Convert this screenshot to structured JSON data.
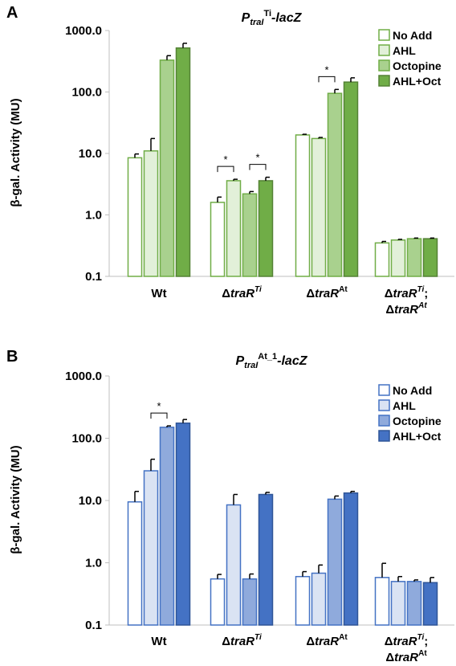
{
  "chart_data": [
    {
      "type": "bar",
      "panel": "A",
      "title_main": "P",
      "title_sub": "traI",
      "title_sup": "Ti",
      "title_end": "-lacZ",
      "ylabel": "β-gal. Activity (MU)",
      "yscale": "log",
      "ylim": [
        0.1,
        1000
      ],
      "yticks": [
        "0.1",
        "1.0",
        "10.0",
        "100.0",
        "1000.0"
      ],
      "categories": [
        {
          "pre": "",
          "main": "Wt",
          "sup": "",
          "line2pre": "",
          "line2main": "",
          "line2sup": ""
        },
        {
          "pre": "Δ",
          "main": "traR",
          "sup": "Ti",
          "line2pre": "",
          "line2main": "",
          "line2sup": ""
        },
        {
          "pre": "Δ",
          "main": "traR",
          "sup": "At",
          "line2pre": "",
          "line2main": "",
          "line2sup": ""
        },
        {
          "pre": "Δ",
          "main": "traR",
          "sup": "Ti",
          "suffix": ";",
          "line2pre": "Δ",
          "line2main": "traR",
          "line2sup": "At"
        }
      ],
      "legend_position": "top-right",
      "series": [
        {
          "name": "No Add",
          "fill": "#ffffff",
          "stroke": "#70ad47",
          "values": [
            8.5,
            1.6,
            20,
            0.35
          ],
          "errors": [
            9.8,
            1.95,
            20.5,
            0.37
          ]
        },
        {
          "name": "AHL",
          "fill": "#e2f0d9",
          "stroke": "#70ad47",
          "values": [
            11,
            3.6,
            17.5,
            0.39
          ],
          "errors": [
            17.5,
            3.8,
            18.2,
            0.4
          ]
        },
        {
          "name": "Octopine",
          "fill": "#a9d18e",
          "stroke": "#70ad47",
          "values": [
            330,
            2.2,
            95,
            0.41
          ],
          "errors": [
            390,
            2.4,
            110,
            0.42
          ]
        },
        {
          "name": "AHL+Oct",
          "fill": "#70ad47",
          "stroke": "#548235",
          "values": [
            520,
            3.6,
            145,
            0.41
          ],
          "errors": [
            620,
            4.1,
            170,
            0.42
          ]
        }
      ],
      "significance": [
        {
          "category": 1,
          "from": 0,
          "to": 1,
          "label": "*"
        },
        {
          "category": 1,
          "from": 2,
          "to": 3,
          "label": "*"
        },
        {
          "category": 2,
          "from": 1,
          "to": 2,
          "label": "*"
        }
      ]
    },
    {
      "type": "bar",
      "panel": "B",
      "title_main": "P",
      "title_sub": "traI",
      "title_sup": "At_1",
      "title_end": "-lacZ",
      "ylabel": "β-gal. Activity (MU)",
      "yscale": "log",
      "ylim": [
        0.1,
        1000
      ],
      "yticks": [
        "0.1",
        "1.0",
        "10.0",
        "100.0",
        "1000.0"
      ],
      "categories": [
        {
          "pre": "",
          "main": "Wt",
          "sup": "",
          "line2pre": "",
          "line2main": "",
          "line2sup": ""
        },
        {
          "pre": "Δ",
          "main": "traR",
          "sup": "Ti",
          "line2pre": "",
          "line2main": "",
          "line2sup": ""
        },
        {
          "pre": "Δ",
          "main": "traR",
          "sup": "At",
          "line2pre": "",
          "line2main": "",
          "line2sup": ""
        },
        {
          "pre": "Δ",
          "main": "traR",
          "sup": "Ti",
          "suffix": ";",
          "line2pre": "Δ",
          "line2main": "traR",
          "line2sup": "At"
        }
      ],
      "legend_position": "top-right",
      "series": [
        {
          "name": "No Add",
          "fill": "#ffffff",
          "stroke": "#4472c4",
          "values": [
            9.5,
            0.55,
            0.6,
            0.58
          ],
          "errors": [
            14,
            0.65,
            0.72,
            0.98
          ]
        },
        {
          "name": "AHL",
          "fill": "#dae3f3",
          "stroke": "#4472c4",
          "values": [
            30,
            8.5,
            0.68,
            0.5
          ],
          "errors": [
            46,
            12.5,
            0.92,
            0.6
          ]
        },
        {
          "name": "Octopine",
          "fill": "#8faadc",
          "stroke": "#4472c4",
          "values": [
            150,
            0.55,
            10.5,
            0.5
          ],
          "errors": [
            158,
            0.66,
            11.8,
            0.53
          ]
        },
        {
          "name": "AHL+Oct",
          "fill": "#4472c4",
          "stroke": "#2f5597",
          "values": [
            175,
            12.5,
            13.2,
            0.48
          ],
          "errors": [
            200,
            13.5,
            14,
            0.58
          ]
        }
      ],
      "significance": [
        {
          "category": 0,
          "from": 1,
          "to": 2,
          "label": "*"
        }
      ]
    }
  ]
}
